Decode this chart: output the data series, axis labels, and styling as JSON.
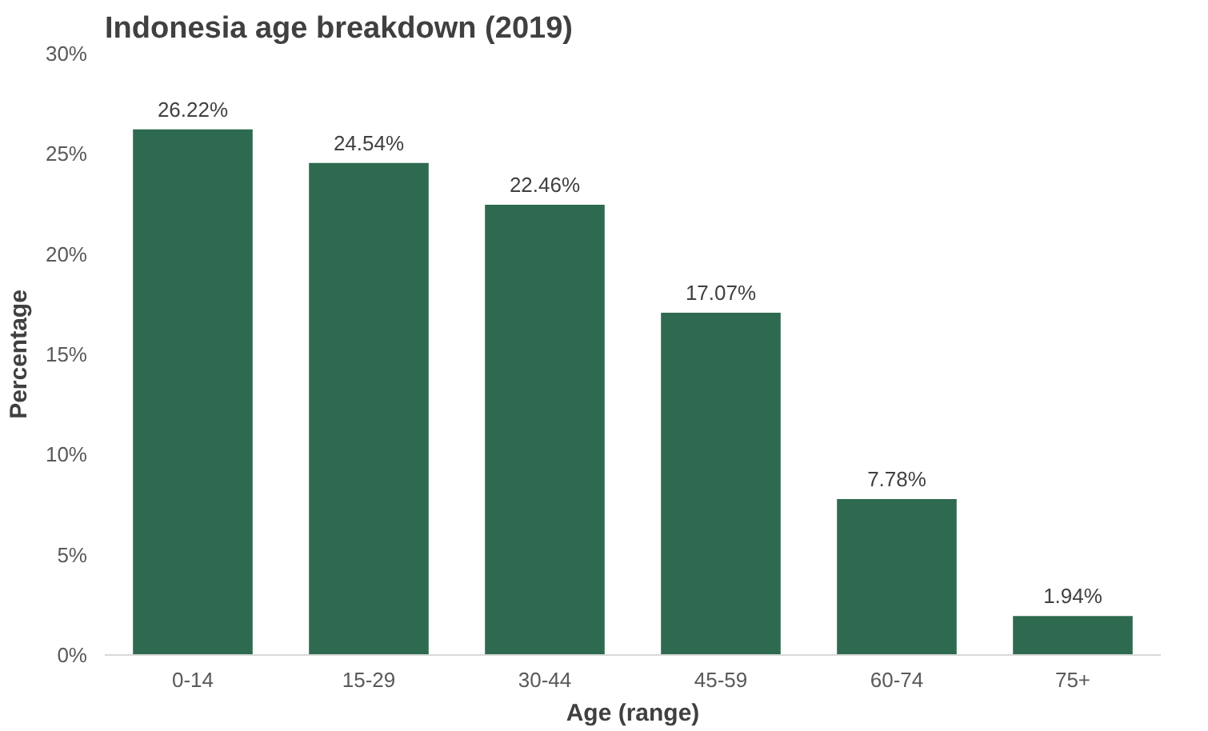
{
  "chart_data": {
    "type": "bar",
    "title": "Indonesia age breakdown (2019)",
    "xlabel": "Age (range)",
    "ylabel": "Percentage",
    "categories": [
      "0-14",
      "15-29",
      "30-44",
      "45-59",
      "60-74",
      "75+"
    ],
    "values": [
      26.22,
      24.54,
      22.46,
      17.07,
      7.78,
      1.94
    ],
    "value_labels": [
      "26.22%",
      "24.54%",
      "22.46%",
      "17.07%",
      "7.78%",
      "1.94%"
    ],
    "color": "#2e6a4f",
    "ylim": [
      0,
      30
    ],
    "yticks": [
      {
        "value": 0,
        "label": "0%"
      },
      {
        "value": 5,
        "label": "5%"
      },
      {
        "value": 10,
        "label": "10%"
      },
      {
        "value": 15,
        "label": "15%"
      },
      {
        "value": 20,
        "label": "20%"
      },
      {
        "value": 25,
        "label": "25%"
      },
      {
        "value": 30,
        "label": "30%"
      }
    ],
    "grid": false
  }
}
